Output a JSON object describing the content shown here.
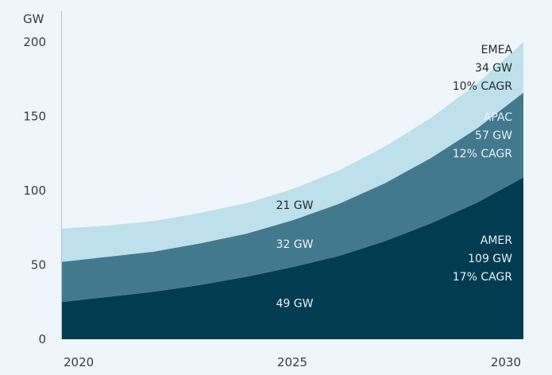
{
  "chart_data": {
    "type": "area",
    "stacked": true,
    "title": "",
    "xlabel": "",
    "ylabel": "GW",
    "xlim": [
      2020,
      2030
    ],
    "ylim": [
      0,
      200
    ],
    "y_ticks": [
      0,
      50,
      100,
      150,
      200
    ],
    "x_ticks": [
      2020,
      2025,
      2030
    ],
    "grid": false,
    "x": [
      2020,
      2021,
      2022,
      2023,
      2024,
      2025,
      2026,
      2027,
      2028,
      2029,
      2030
    ],
    "series": [
      {
        "key": "amer",
        "color": "#023c50",
        "values": [
          25,
          28.5,
          32,
          36.5,
          42,
          48.5,
          56,
          66,
          78,
          92,
          109
        ],
        "labels": {
          "mid": "49 GW",
          "end": [
            "AMER",
            "109 GW",
            "17% CAGR"
          ]
        }
      },
      {
        "key": "apac",
        "color": "#43798d",
        "values": [
          27,
          27,
          27,
          28,
          29,
          31.5,
          35,
          39,
          44,
          50,
          57
        ],
        "labels": {
          "mid": "32 GW",
          "end": [
            "APAC",
            "57 GW",
            "12% CAGR"
          ]
        }
      },
      {
        "key": "emea",
        "color": "#bde0ea",
        "values": [
          22.5,
          21,
          20.5,
          20.5,
          20.5,
          21,
          22.5,
          24.5,
          27,
          30,
          34
        ],
        "labels": {
          "mid": "21 GW",
          "end": [
            "EMEA",
            "34 GW",
            "10% CAGR"
          ]
        }
      }
    ]
  }
}
